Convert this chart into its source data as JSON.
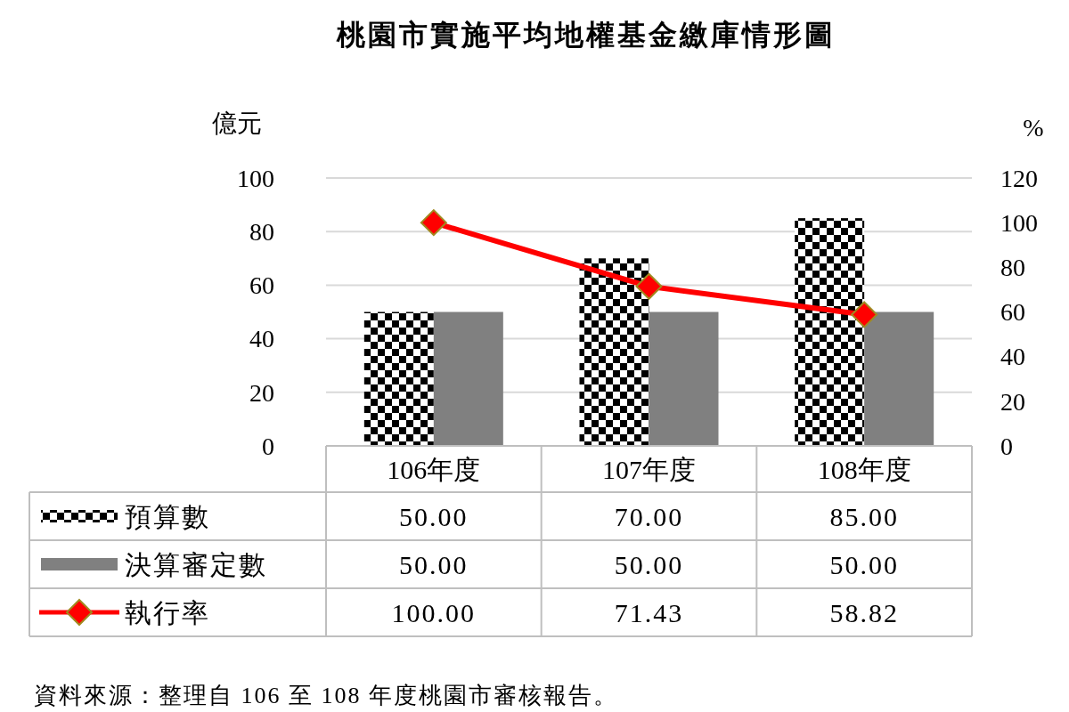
{
  "chart_data": {
    "type": "bar",
    "title": "桃園市實施平均地權基金繳庫情形圖",
    "ylabel": "億元",
    "y2label": "%",
    "categories": [
      "106年度",
      "107年度",
      "108年度"
    ],
    "series": [
      {
        "name": "預算數",
        "color": "#000000",
        "values": [
          50,
          70,
          85
        ],
        "value_labels": [
          "50.00",
          "70.00",
          "85.00"
        ]
      },
      {
        "name": "決算審定數",
        "color": "#808080",
        "values": [
          50,
          50,
          50
        ],
        "value_labels": [
          "50.00",
          "50.00",
          "50.00"
        ]
      },
      {
        "name": "執行率",
        "type": "line",
        "axis": "y2",
        "color": "#ff0000",
        "values": [
          100,
          71.43,
          58.82
        ],
        "value_labels": [
          "100.00",
          "71.43",
          "58.82"
        ],
        "marker": "diamond"
      }
    ],
    "ylim": [
      0,
      100
    ],
    "yticks": [
      0,
      20,
      40,
      60,
      80,
      100
    ],
    "y2lim": [
      0,
      120
    ],
    "y2ticks": [
      0,
      20,
      40,
      60,
      80,
      100,
      120
    ],
    "grid": "y",
    "legend": "bottom",
    "annotations": [
      "資料來源：整理自 106 至 108 年度桃園市審核報告。"
    ]
  }
}
